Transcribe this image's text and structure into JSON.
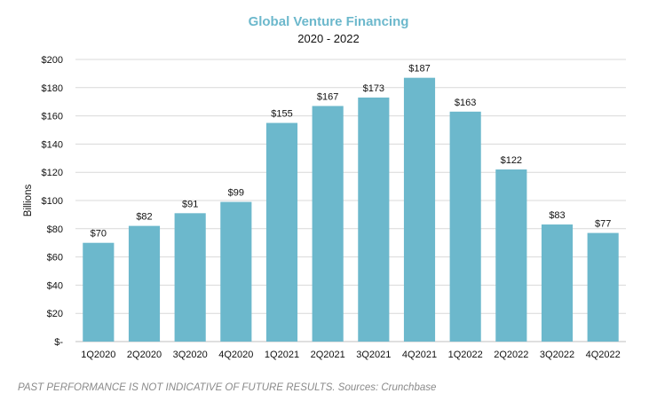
{
  "chart_data": {
    "type": "bar",
    "title": "Global Venture Financing",
    "subtitle": "2020 - 2022",
    "xlabel": "",
    "ylabel": "Billions",
    "categories": [
      "1Q2020",
      "2Q2020",
      "3Q2020",
      "4Q2020",
      "1Q2021",
      "2Q2021",
      "3Q2021",
      "4Q2021",
      "1Q2022",
      "2Q2022",
      "3Q2022",
      "4Q2022"
    ],
    "values": [
      70,
      82,
      91,
      99,
      155,
      167,
      173,
      187,
      163,
      122,
      83,
      77
    ],
    "value_labels": [
      "$70",
      "$82",
      "$91",
      "$99",
      "$155",
      "$167",
      "$173",
      "$187",
      "$163",
      "$122",
      "$83",
      "$77"
    ],
    "ylim": [
      0,
      200
    ],
    "y_ticks": [
      0,
      20,
      40,
      60,
      80,
      100,
      120,
      140,
      160,
      180,
      200
    ],
    "y_tick_labels": [
      "$-",
      "$20",
      "$40",
      "$60",
      "$80",
      "$100",
      "$120",
      "$140",
      "$160",
      "$180",
      "$200"
    ],
    "grid": true,
    "legend": "none",
    "bar_color": "#6cb8cc",
    "title_color": "#6cb8cc"
  },
  "footer": "PAST PERFORMANCE IS NOT INDICATIVE OF FUTURE RESULTS. Sources: Crunchbase"
}
